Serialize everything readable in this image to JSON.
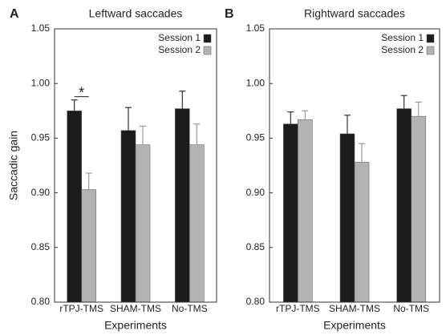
{
  "chart_data": [
    {
      "type": "bar",
      "panel_label": "A",
      "title": "Leftward saccades",
      "y_label": "Saccadic gain",
      "x_label": "Experiments",
      "categories": [
        "rTPJ-TMS",
        "SHAM-TMS",
        "No-TMS"
      ],
      "series": [
        {
          "name": "Session 1",
          "color": "#1c1c1c",
          "values": [
            0.975,
            0.957,
            0.977
          ],
          "errors": [
            0.01,
            0.021,
            0.016
          ]
        },
        {
          "name": "Session 2",
          "color": "#b3b3b3",
          "values": [
            0.903,
            0.944,
            0.944
          ],
          "errors": [
            0.015,
            0.017,
            0.019
          ]
        }
      ],
      "annotations": [
        {
          "text": "*"
        }
      ],
      "ylim": [
        0.8,
        1.05
      ],
      "yticks": [
        {
          "value": 0.8,
          "label": "0.80"
        },
        0.85,
        {
          "value": 0.9,
          "label": "0.90"
        },
        0.95,
        {
          "value": 1.0,
          "label": "1.00"
        },
        1.05
      ],
      "legend": "upper right"
    },
    {
      "type": "bar",
      "panel_label": "B",
      "title": "Rightward saccades",
      "x_label": "Experiments",
      "categories": [
        "rTPJ-TMS",
        "SHAM-TMS",
        "No-TMS"
      ],
      "series": [
        {
          "name": "Session 1",
          "color": "#1c1c1c",
          "values": [
            0.963,
            0.954,
            0.977
          ],
          "errors": [
            0.011,
            0.017,
            0.012
          ]
        },
        {
          "name": "Session 2",
          "color": "#b3b3b3",
          "values": [
            0.967,
            0.928,
            0.97
          ],
          "errors": [
            0.008,
            0.017,
            0.013
          ]
        }
      ],
      "ylim": [
        0.8,
        1.05
      ],
      "yticks": [
        {
          "value": 0.8,
          "label": "0.80"
        },
        0.85,
        {
          "value": 0.9,
          "label": "0.90"
        },
        0.95,
        {
          "value": 1.0,
          "label": "1.00"
        },
        1.05
      ],
      "legend": "upper right"
    }
  ]
}
